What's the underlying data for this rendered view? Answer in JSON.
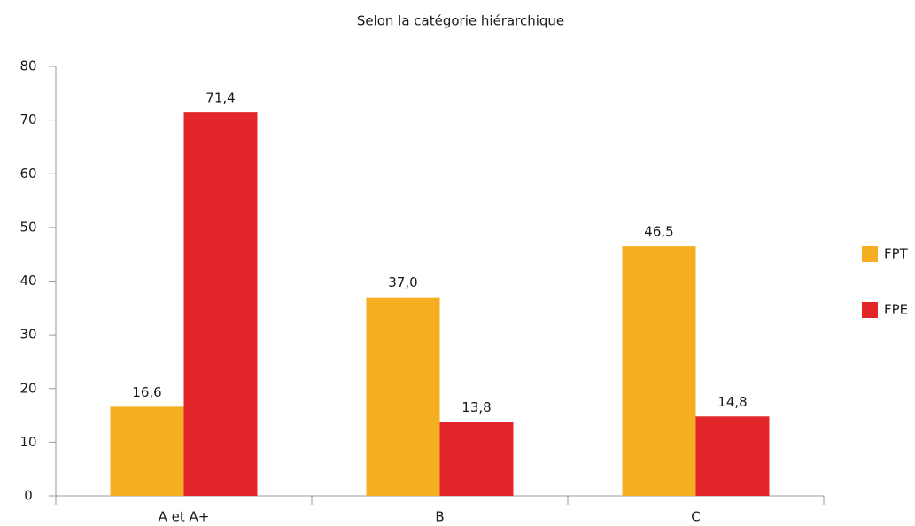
{
  "chart_data": {
    "type": "bar",
    "title": "Selon la catégorie hiérarchique",
    "categories": [
      "A et A+",
      "B",
      "C"
    ],
    "series": [
      {
        "name": "FPT",
        "color": "#f5ae1f",
        "values": [
          16.6,
          37.0,
          46.5
        ],
        "value_labels": [
          "16,6",
          "37,0",
          "46,5"
        ]
      },
      {
        "name": "FPE",
        "color": "#e3262a",
        "values": [
          71.4,
          13.8,
          14.8
        ],
        "value_labels": [
          "71,4",
          "13,8",
          "14,8"
        ]
      }
    ],
    "ylim": [
      0,
      80
    ],
    "yticks": [
      0,
      10,
      20,
      30,
      40,
      50,
      60,
      70,
      80
    ],
    "grid": false,
    "legend": "right"
  }
}
